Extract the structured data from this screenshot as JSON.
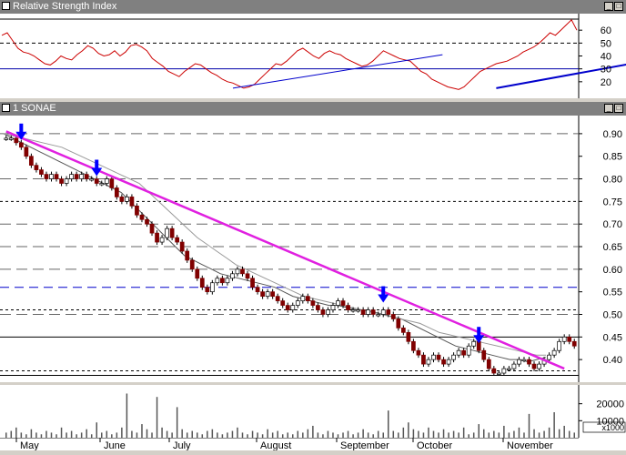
{
  "rsi_panel": {
    "title": "Relative Strength Index"
  },
  "price_panel": {
    "title": "1 SONAE"
  },
  "icons": {
    "panel": "panel-icon",
    "minimize": "minimize-icon",
    "maximize": "maximize-icon"
  },
  "colors": {
    "rsi_line": "#cc0000",
    "trend_blue": "#0000cc",
    "trend_magenta": "#e020e0",
    "arrow": "#0000ff",
    "up_candle": "#ffffff",
    "down_candle": "#800000"
  },
  "chart_data": [
    {
      "type": "line",
      "ylim": [
        10,
        70
      ],
      "yticks": [
        20,
        30,
        40,
        50,
        60
      ],
      "reference_levels": [
        30,
        50
      ],
      "series": [
        {
          "values": [
            56,
            58,
            52,
            46,
            43,
            42,
            40,
            37,
            34,
            33,
            36,
            40,
            38,
            37,
            41,
            44,
            48,
            46,
            42,
            40,
            41,
            44,
            40,
            43,
            48,
            49,
            47,
            44,
            38,
            35,
            32,
            28,
            26,
            24,
            28,
            31,
            34,
            33,
            30,
            27,
            25,
            22,
            20,
            19,
            17,
            15,
            16,
            18,
            22,
            26,
            30,
            34,
            33,
            36,
            40,
            44,
            46,
            43,
            40,
            38,
            42,
            44,
            42,
            41,
            38,
            36,
            34,
            32,
            33,
            36,
            40,
            44,
            42,
            40,
            38,
            37,
            36,
            32,
            28,
            26,
            22,
            20,
            18,
            16,
            15,
            14,
            16,
            20,
            24,
            28,
            30,
            32,
            34,
            35,
            36,
            38,
            40,
            43,
            45,
            47,
            50,
            54,
            58,
            56,
            60,
            64,
            68,
            60
          ]
        }
      ],
      "trendlines": [
        {
          "from": [
            43,
            15
          ],
          "to": [
            82,
            41
          ]
        },
        {
          "from": [
            92,
            15
          ],
          "to": [
            121,
            37
          ]
        }
      ]
    },
    {
      "type": "candlestick",
      "ylim": [
        0.36,
        0.93
      ],
      "yticks": [
        0.4,
        0.45,
        0.5,
        0.55,
        0.6,
        0.65,
        0.7,
        0.75,
        0.8,
        0.85,
        0.9
      ],
      "xlabels": [
        "May",
        "June",
        "July",
        "August",
        "September",
        "October",
        "November"
      ],
      "series": [
        {
          "name": "SONAE",
          "values": [
            0.89,
            0.89,
            0.88,
            0.87,
            0.85,
            0.83,
            0.82,
            0.81,
            0.8,
            0.81,
            0.8,
            0.79,
            0.8,
            0.81,
            0.8,
            0.81,
            0.8,
            0.8,
            0.79,
            0.79,
            0.8,
            0.78,
            0.76,
            0.75,
            0.76,
            0.74,
            0.72,
            0.71,
            0.7,
            0.68,
            0.66,
            0.67,
            0.69,
            0.67,
            0.66,
            0.64,
            0.62,
            0.6,
            0.58,
            0.56,
            0.55,
            0.57,
            0.58,
            0.57,
            0.58,
            0.59,
            0.6,
            0.59,
            0.58,
            0.56,
            0.55,
            0.54,
            0.55,
            0.54,
            0.53,
            0.52,
            0.51,
            0.52,
            0.53,
            0.54,
            0.53,
            0.52,
            0.51,
            0.5,
            0.51,
            0.52,
            0.53,
            0.52,
            0.51,
            0.51,
            0.51,
            0.5,
            0.51,
            0.5,
            0.5,
            0.51,
            0.5,
            0.49,
            0.47,
            0.46,
            0.44,
            0.42,
            0.41,
            0.39,
            0.4,
            0.41,
            0.4,
            0.39,
            0.4,
            0.41,
            0.42,
            0.41,
            0.43,
            0.44,
            0.42,
            0.4,
            0.38,
            0.37,
            0.37,
            0.38,
            0.38,
            0.39,
            0.4,
            0.4,
            0.39,
            0.38,
            0.39,
            0.4,
            0.41,
            0.42,
            0.44,
            0.45,
            0.44,
            0.43
          ]
        },
        {
          "values": [
            0.9,
            0.89,
            0.88,
            0.87,
            0.86,
            0.85,
            0.84,
            0.83,
            0.82,
            0.81,
            0.8,
            0.79,
            0.78,
            0.77,
            0.75,
            0.73,
            0.71,
            0.69,
            0.67,
            0.65,
            0.63,
            0.62,
            0.61,
            0.6,
            0.59,
            0.585,
            0.58,
            0.575,
            0.57,
            0.565,
            0.56,
            0.55,
            0.54,
            0.535,
            0.53,
            0.525,
            0.52,
            0.52,
            0.515,
            0.51,
            0.51,
            0.505,
            0.5,
            0.495,
            0.49,
            0.48,
            0.47,
            0.46,
            0.45,
            0.44,
            0.43,
            0.425,
            0.42,
            0.415,
            0.41,
            0.405,
            0.4,
            0.4,
            0.395,
            0.4,
            0.405
          ]
        },
        {
          "values": [
            0.9,
            0.895,
            0.89,
            0.885,
            0.88,
            0.875,
            0.87,
            0.86,
            0.85,
            0.84,
            0.83,
            0.82,
            0.81,
            0.8,
            0.79,
            0.77,
            0.75,
            0.73,
            0.71,
            0.69,
            0.67,
            0.655,
            0.64,
            0.625,
            0.61,
            0.6,
            0.59,
            0.58,
            0.57,
            0.56,
            0.55,
            0.54,
            0.535,
            0.53,
            0.525,
            0.52,
            0.515,
            0.51,
            0.505,
            0.5,
            0.495,
            0.49,
            0.485,
            0.48,
            0.47,
            0.46,
            0.455,
            0.45,
            0.445,
            0.44,
            0.435,
            0.43,
            0.425,
            0.42,
            0.415,
            0.41,
            0.41
          ]
        }
      ],
      "horizontal_levels": [
        {
          "value": 0.9,
          "style": "dashed"
        },
        {
          "value": 0.8,
          "style": "dashed"
        },
        {
          "value": 0.75,
          "style": "dotted"
        },
        {
          "value": 0.7,
          "style": "dashed"
        },
        {
          "value": 0.65,
          "style": "dashed"
        },
        {
          "value": 0.6,
          "style": "dashed"
        },
        {
          "value": 0.56,
          "style": "blue-dashed"
        },
        {
          "value": 0.5,
          "style": "dashed"
        },
        {
          "value": 0.51,
          "style": "dotted"
        },
        {
          "value": 0.45,
          "style": "solid"
        },
        {
          "value": 0.375,
          "style": "dotted"
        },
        {
          "value": 0.365,
          "style": "solid"
        }
      ],
      "trendline": {
        "from": [
          0,
          0.905
        ],
        "to": [
          111,
          0.38
        ]
      },
      "arrows": [
        3,
        18,
        75,
        94
      ]
    },
    {
      "type": "bar",
      "ylim": [
        0,
        30000
      ],
      "yticks": [
        10000,
        20000
      ],
      "unit_label": "x1000",
      "values": [
        3000,
        4000,
        6000,
        3000,
        2000,
        5000,
        3000,
        2000,
        4000,
        3000,
        2000,
        6000,
        3000,
        4000,
        2000,
        3000,
        5000,
        2000,
        9000,
        3000,
        4000,
        2000,
        3000,
        6000,
        26000,
        4000,
        3000,
        8000,
        5000,
        3000,
        24000,
        6000,
        4000,
        3000,
        18000,
        5000,
        3000,
        4000,
        3000,
        2000,
        4000,
        5000,
        3000,
        2000,
        3000,
        4000,
        6000,
        3000,
        2000,
        4000,
        3000,
        2000,
        5000,
        3000,
        4000,
        2000,
        3000,
        2000,
        4000,
        3000,
        5000,
        7000,
        3000,
        2000,
        4000,
        3000,
        2000,
        3000,
        4000,
        2000,
        3000,
        5000,
        3000,
        2000,
        4000,
        3000,
        16000,
        4000,
        3000,
        6000,
        9000,
        5000,
        4000,
        3000,
        6000,
        4000,
        3000,
        5000,
        3000,
        4000,
        3000,
        6000,
        2000,
        3000,
        8000,
        5000,
        3000,
        4000,
        3000,
        7000,
        3000,
        4000,
        6000,
        3000,
        14000,
        5000,
        3000,
        4000,
        6000,
        15000,
        5000,
        7000,
        4000,
        3000
      ]
    }
  ]
}
